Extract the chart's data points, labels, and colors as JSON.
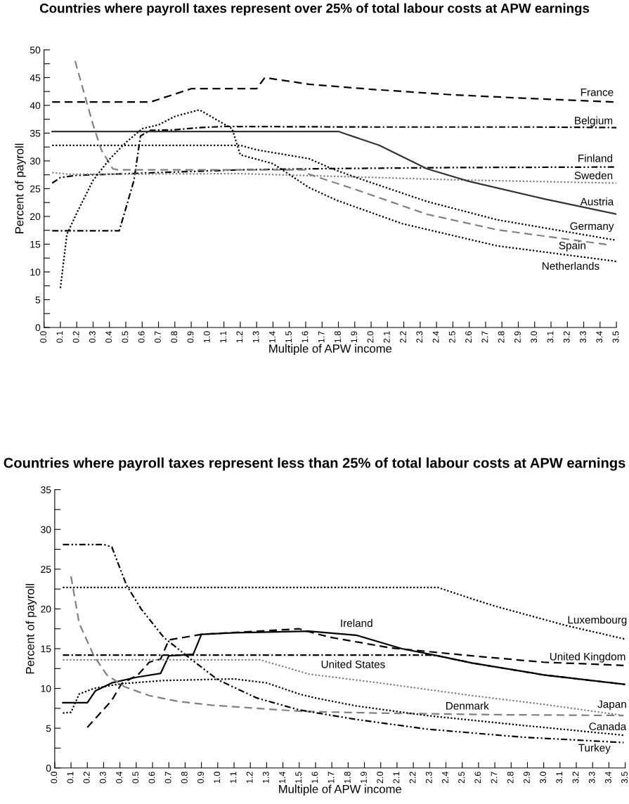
{
  "chart_data": [
    {
      "type": "line",
      "title": "Countries where payroll taxes represent over 25% of total labour costs at APW earnings",
      "xlabel": "Multiple of APW income",
      "ylabel": "Percent of payroll",
      "xlim": [
        0,
        3.5
      ],
      "ylim": [
        0,
        50
      ],
      "xticks": [
        {
          "value": 0,
          "label": "0.0"
        },
        0.1,
        0.2,
        0.3,
        0.4,
        0.5,
        0.6,
        0.7,
        0.8,
        0.9,
        {
          "value": 1,
          "label": "1.0"
        },
        1.1,
        1.2,
        1.3,
        1.4,
        1.5,
        1.6,
        1.7,
        1.8,
        1.9,
        {
          "value": 2,
          "label": "2.0"
        },
        2.1,
        2.2,
        2.3,
        2.4,
        2.5,
        2.6,
        2.7,
        2.8,
        2.9,
        {
          "value": 3,
          "label": "3.0"
        },
        3.1,
        3.2,
        3.3,
        3.4,
        3.5
      ],
      "yticks": [
        0,
        {
          "value": 2.5,
          "label": null
        },
        5,
        {
          "value": 7.5,
          "label": null
        },
        10,
        {
          "value": 12.5,
          "label": null
        },
        15,
        {
          "value": 17.5,
          "label": null
        },
        20,
        {
          "value": 22.5,
          "label": null
        },
        25,
        {
          "value": 27.5,
          "label": null
        },
        30,
        {
          "value": 32.5,
          "label": null
        },
        35,
        {
          "value": 37.5,
          "label": null
        },
        40,
        {
          "value": 42.5,
          "label": null
        },
        45,
        {
          "value": 47.5,
          "label": null
        },
        50
      ],
      "series": [
        {
          "name": "France",
          "color": "#000000",
          "line_style": "dashed",
          "x": [
            0.05,
            0.65,
            0.9,
            1.3,
            1.35,
            1.62,
            2.0,
            2.5,
            3.0,
            3.5
          ],
          "values": [
            40.6,
            40.6,
            43,
            43,
            45,
            43.8,
            42.9,
            41.9,
            41.2,
            40.6
          ]
        },
        {
          "name": "Belgium",
          "color": "#000000",
          "line_style": "dashdot",
          "x": [
            0.05,
            0.46,
            0.55,
            0.59,
            0.65,
            0.8,
            0.95,
            1.1,
            2.0,
            3.0,
            3.5
          ],
          "values": [
            17.4,
            17.4,
            26.5,
            34.5,
            35.5,
            35.6,
            36.0,
            36.2,
            36.1,
            36.1,
            36.0
          ]
        },
        {
          "name": "Finland",
          "color": "#000000",
          "line_style": "dashdotdot",
          "x": [
            0.05,
            0.1,
            0.2,
            0.4,
            0.8,
            1.2,
            1.7,
            2.5,
            3.5
          ],
          "values": [
            26.0,
            27.0,
            27.4,
            27.6,
            28.0,
            28.4,
            28.6,
            28.8,
            28.9
          ]
        },
        {
          "name": "Sweden",
          "color": "#808080",
          "line_style": "dotted",
          "x": [
            0.05,
            0.15,
            1.2,
            1.8,
            2.5,
            3.5
          ],
          "values": [
            27.9,
            27.6,
            27.7,
            27.2,
            26.6,
            26.0
          ]
        },
        {
          "name": "Austria",
          "color": "#333333",
          "line_style": "solid",
          "x": [
            0.05,
            1.8,
            1.84,
            2.05,
            2.34,
            2.6,
            3.05,
            3.5
          ],
          "values": [
            35.3,
            35.3,
            34.9,
            32.8,
            28.6,
            26.3,
            23.2,
            20.4
          ]
        },
        {
          "name": "Germany",
          "color": "#000000",
          "line_style": "dotted",
          "x": [
            0.05,
            1.2,
            1.3,
            1.62,
            1.76,
            1.91,
            2.34,
            2.77,
            3.5
          ],
          "values": [
            32.8,
            32.8,
            32.0,
            30.4,
            28.6,
            27.0,
            22.7,
            19.4,
            15.7
          ]
        },
        {
          "name": "Spain",
          "color": "#808080",
          "line_style": "dashed",
          "x": [
            0.19,
            0.25,
            0.3,
            0.35,
            0.42,
            0.45,
            1.6,
            1.62,
            1.91,
            2.34,
            2.77,
            3.45
          ],
          "values": [
            48,
            41.7,
            36.5,
            32,
            28.6,
            28.4,
            28.4,
            27.6,
            24.8,
            20.4,
            17.6,
            14.9
          ]
        },
        {
          "name": "Netherlands",
          "color": "#000000",
          "line_style": "dotted",
          "x": [
            0.1,
            0.14,
            0.2,
            0.3,
            0.4,
            0.5,
            0.6,
            0.7,
            0.8,
            0.95,
            1.05,
            1.15,
            1.2,
            1.4,
            1.62,
            1.79,
            2.19,
            2.77,
            3.5
          ],
          "values": [
            7.1,
            16.8,
            20.6,
            26.5,
            30.3,
            33.3,
            35.8,
            36.5,
            38,
            39.2,
            37.5,
            35.8,
            31.1,
            29.5,
            25.2,
            22.9,
            18.7,
            14.7,
            11.9
          ]
        }
      ],
      "legend": false
    },
    {
      "type": "line",
      "title": "Countries where payroll taxes represent less than 25% of total labour costs at APW earnings",
      "xlabel": "Multiple of APW income",
      "ylabel": "Percent of payroll",
      "xlim": [
        0,
        3.5
      ],
      "ylim": [
        0,
        35
      ],
      "xticks": [
        {
          "value": 0,
          "label": "0.0"
        },
        0.1,
        0.2,
        0.3,
        0.4,
        0.5,
        0.6,
        0.7,
        0.8,
        0.9,
        {
          "value": 1,
          "label": "1.0"
        },
        1.1,
        1.2,
        1.3,
        1.4,
        1.5,
        1.6,
        1.7,
        1.8,
        1.9,
        {
          "value": 2,
          "label": "2.0"
        },
        2.1,
        2.2,
        2.3,
        2.4,
        2.5,
        2.6,
        2.7,
        2.8,
        2.9,
        {
          "value": 3,
          "label": "3.0"
        },
        3.1,
        3.2,
        3.3,
        3.4,
        3.5
      ],
      "yticks": [
        0,
        {
          "value": 2.5,
          "label": null
        },
        5,
        {
          "value": 7.5,
          "label": null
        },
        10,
        {
          "value": 12.5,
          "label": null
        },
        15,
        {
          "value": 17.5,
          "label": null
        },
        20,
        {
          "value": 22.5,
          "label": null
        },
        25,
        {
          "value": 27.5,
          "label": null
        },
        30,
        {
          "value": 32.5,
          "label": null
        },
        35
      ],
      "series": [
        {
          "name": "Luxembourg",
          "color": "#000000",
          "line_style": "dotted",
          "x": [
            0.05,
            2.35,
            2.57,
            2.71,
            3.14,
            3.5
          ],
          "values": [
            22.7,
            22.7,
            21.2,
            20.3,
            17.9,
            16.2
          ]
        },
        {
          "name": "Ireland",
          "color": "#000000",
          "line_style": "solid",
          "x": [
            0.05,
            0.2,
            0.25,
            0.35,
            0.5,
            0.65,
            0.7,
            0.85,
            0.9,
            1.1,
            1.56,
            1.85,
            2.13,
            2.35,
            2.56,
            3.0,
            3.5
          ],
          "values": [
            8.2,
            8.2,
            9.7,
            10.7,
            11.4,
            11.9,
            14.1,
            14.3,
            16.8,
            17.0,
            17.2,
            16.7,
            15.0,
            14.1,
            13.2,
            11.7,
            10.5
          ]
        },
        {
          "name": "United Kingdom",
          "color": "#000000",
          "line_style": "dashed",
          "x": [
            0.2,
            0.35,
            0.41,
            0.51,
            0.58,
            0.65,
            0.7,
            0.9,
            1.5,
            1.6,
            1.7,
            2.06,
            2.56,
            3.0,
            3.49
          ],
          "values": [
            5.1,
            8.5,
            10.6,
            11.7,
            13.3,
            13.7,
            16.1,
            16.8,
            17.5,
            16.9,
            16.4,
            15.1,
            14.1,
            13.3,
            12.9
          ]
        },
        {
          "name": "United States",
          "color": "#000000",
          "line_style": "dashdot",
          "x": [
            0.05,
            2.3,
            2.35,
            2.56,
            3.0,
            3.5
          ],
          "values": [
            14.2,
            14.2,
            14.1,
            13.2,
            11.7,
            10.5
          ]
        },
        {
          "name": "Denmark",
          "color": "#808080",
          "line_style": "dashed",
          "x": [
            0.1,
            0.15,
            0.24,
            0.32,
            0.43,
            0.58,
            0.75,
            0.96,
            1.24,
            1.53,
            1.99,
            2.71,
            3.49
          ],
          "values": [
            24.1,
            18.2,
            14.1,
            11.7,
            10.2,
            9.1,
            8.4,
            7.9,
            7.5,
            7.1,
            6.9,
            6.7,
            6.6
          ]
        },
        {
          "name": "Japan",
          "color": "#808080",
          "line_style": "dotted",
          "x": [
            0.05,
            1.26,
            1.56,
            1.99,
            2.56,
            3.0,
            3.49
          ],
          "values": [
            13.6,
            13.6,
            11.8,
            10.7,
            9.1,
            8.0,
            6.6
          ]
        },
        {
          "name": "Canada",
          "color": "#000000",
          "line_style": "dotted",
          "x": [
            0.05,
            0.1,
            0.15,
            0.24,
            0.41,
            0.67,
            1.1,
            1.3,
            1.5,
            1.6,
            1.85,
            2.28,
            2.85,
            3.5
          ],
          "values": [
            6.9,
            7.0,
            9.3,
            10.0,
            10.6,
            11.0,
            11.2,
            10.7,
            9.3,
            8.8,
            7.8,
            6.6,
            5.4,
            4.1
          ]
        },
        {
          "name": "Turkey",
          "color": "#000000",
          "line_style": "dashdotdot",
          "x": [
            0.05,
            0.3,
            0.35,
            0.44,
            0.53,
            0.67,
            0.81,
            1.0,
            1.24,
            1.5,
            1.85,
            2.28,
            2.85,
            3.49
          ],
          "values": [
            28.1,
            28.1,
            27.8,
            23.0,
            20.0,
            16.4,
            14.1,
            11.1,
            8.8,
            7.3,
            6.1,
            4.9,
            3.9,
            3.2
          ]
        }
      ],
      "legend": false
    }
  ]
}
